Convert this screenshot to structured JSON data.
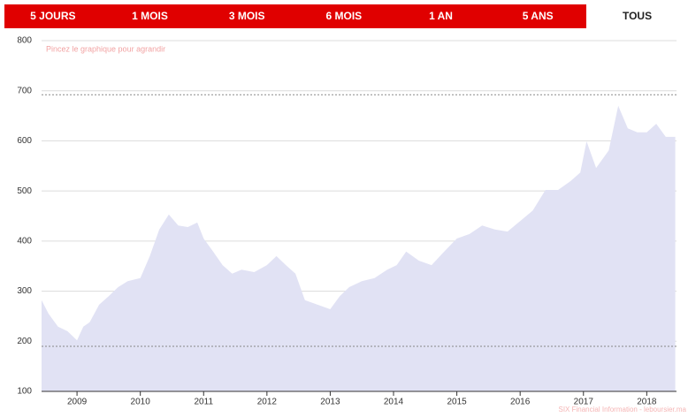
{
  "tabs": [
    "5 JOURS",
    "1 MOIS",
    "3 MOIS",
    "6 MOIS",
    "1 AN",
    "5 ANS",
    "TOUS"
  ],
  "selected_tab": "TOUS",
  "chart_data": {
    "type": "area",
    "watermark": "Pincez le graphique pour agrandir",
    "credit": "SIX Financial Information - leboursier.ma",
    "color": "#e1e2f4",
    "x": [
      2008.44,
      2008.55,
      2008.7,
      2008.85,
      2009.0,
      2009.1,
      2009.2,
      2009.35,
      2009.5,
      2009.65,
      2009.8,
      2010.0,
      2010.15,
      2010.3,
      2010.45,
      2010.6,
      2010.75,
      2010.9,
      2011.0,
      2011.15,
      2011.3,
      2011.45,
      2011.6,
      2011.8,
      2012.0,
      2012.15,
      2012.3,
      2012.45,
      2012.6,
      2012.8,
      2013.0,
      2013.15,
      2013.3,
      2013.5,
      2013.7,
      2013.9,
      2014.05,
      2014.2,
      2014.4,
      2014.6,
      2014.8,
      2015.0,
      2015.2,
      2015.4,
      2015.6,
      2015.8,
      2016.0,
      2016.2,
      2016.4,
      2016.6,
      2016.8,
      2016.95,
      2017.05,
      2017.2,
      2017.4,
      2017.55,
      2017.7,
      2017.85,
      2018.0,
      2018.15,
      2018.3,
      2018.45
    ],
    "values": [
      282,
      255,
      229,
      220,
      202,
      229,
      238,
      273,
      290,
      308,
      320,
      326,
      370,
      423,
      453,
      431,
      428,
      437,
      405,
      379,
      352,
      335,
      343,
      338,
      352,
      370,
      352,
      335,
      282,
      273,
      264,
      290,
      308,
      320,
      326,
      343,
      352,
      379,
      361,
      352,
      379,
      405,
      414,
      431,
      423,
      419,
      440,
      461,
      502,
      502,
      520,
      537,
      599,
      546,
      581,
      670,
      625,
      617,
      617,
      634,
      608,
      608
    ],
    "reference_lines": [
      692,
      190
    ],
    "xlim": [
      2008.44,
      2018.47
    ],
    "xticks": [
      2009,
      2010,
      2011,
      2012,
      2013,
      2014,
      2015,
      2016,
      2017,
      2018
    ],
    "ylim": [
      100,
      800
    ],
    "yticks": [
      100,
      200,
      300,
      400,
      500,
      600,
      700,
      800
    ],
    "grid": true
  }
}
